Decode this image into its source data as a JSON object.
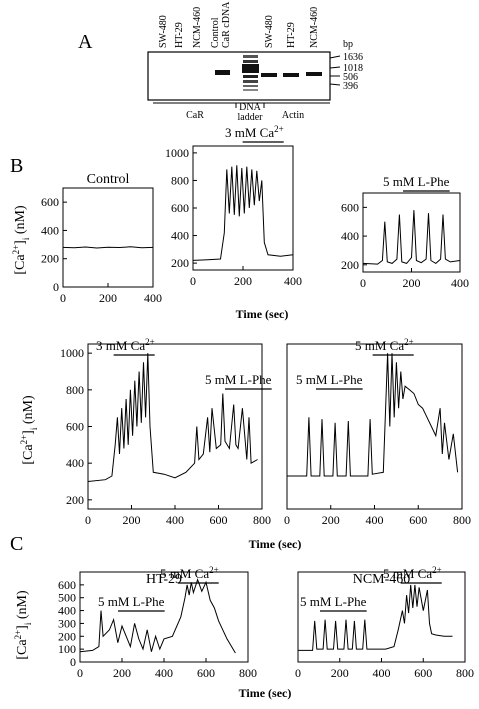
{
  "panel_a": {
    "label": "A",
    "lanes": [
      [
        "SW-480"
      ],
      [
        "HT-29"
      ],
      [
        "NCM-460"
      ],
      [
        "Control",
        "CaR cDNA"
      ],
      [
        "SW-480"
      ],
      [
        "HT-29"
      ],
      [
        "NCM-460"
      ]
    ],
    "bp": [
      "bp",
      "1636",
      "1018",
      "506",
      "396"
    ],
    "groups": [
      [
        "CaR"
      ],
      [
        "DNA",
        "ladder"
      ],
      [
        "Actin"
      ]
    ]
  },
  "panel_b": {
    "label": "B"
  },
  "panel_c": {
    "label": "C"
  },
  "chart_data": [
    {
      "type": "line",
      "title": "Control",
      "y_label": {
        "pre": "[Ca",
        "sup": "2+",
        "mid": "]",
        "sub": "i",
        "post": " (nM)"
      },
      "x": [
        0,
        50,
        100,
        150,
        200,
        250,
        300,
        350,
        400
      ],
      "series": [
        {
          "color": "#000000",
          "values": [
            280,
            278,
            283,
            276,
            281,
            279,
            284,
            277,
            280
          ]
        }
      ],
      "xlim": [
        0,
        400
      ],
      "xticks": [
        0,
        200,
        400
      ],
      "ylim": [
        0,
        700
      ],
      "yticks": [
        0,
        200,
        400,
        600
      ]
    },
    {
      "type": "line",
      "x_label": "Time (sec)",
      "annotations": [
        {
          "text": "3 mM Ca",
          "sup": "2+"
        }
      ],
      "x": [
        0,
        60,
        110,
        125,
        135,
        145,
        155,
        165,
        175,
        185,
        195,
        205,
        215,
        225,
        235,
        245,
        255,
        265,
        275,
        285,
        300,
        350,
        400
      ],
      "series": [
        {
          "color": "#000000",
          "values": [
            220,
            225,
            230,
            420,
            880,
            560,
            900,
            550,
            910,
            540,
            890,
            560,
            900,
            600,
            880,
            620,
            870,
            650,
            800,
            350,
            260,
            250,
            260
          ]
        }
      ],
      "xlim": [
        0,
        400
      ],
      "xticks": [
        0,
        200,
        400
      ],
      "ylim": [
        150,
        1050
      ],
      "yticks": [
        200,
        400,
        600,
        800,
        1000
      ]
    },
    {
      "type": "line",
      "annotations": [
        {
          "text": "5 mM L-Phe"
        }
      ],
      "x": [
        0,
        60,
        80,
        90,
        100,
        120,
        140,
        150,
        160,
        180,
        200,
        210,
        220,
        240,
        260,
        270,
        280,
        300,
        320,
        330,
        340,
        360,
        400
      ],
      "series": [
        {
          "color": "#000000",
          "values": [
            210,
            205,
            230,
            500,
            220,
            210,
            240,
            550,
            220,
            210,
            250,
            580,
            230,
            215,
            240,
            560,
            230,
            210,
            240,
            550,
            240,
            220,
            230
          ]
        }
      ],
      "xlim": [
        0,
        400
      ],
      "xticks": [
        0,
        200,
        400
      ],
      "ylim": [
        150,
        700
      ],
      "yticks": [
        200,
        400,
        600
      ]
    },
    {
      "type": "line",
      "x_label": "Time (sec)",
      "y_label": {
        "pre": "[Ca",
        "sup": "2+",
        "mid": "]",
        "sub": "i",
        "post": " (nM)"
      },
      "annotations": [
        {
          "text": "3 mM Ca",
          "sup": "2+"
        },
        {
          "text": "5 mM L-Phe"
        }
      ],
      "x": [
        0,
        80,
        110,
        125,
        135,
        145,
        155,
        165,
        175,
        185,
        195,
        205,
        215,
        225,
        235,
        245,
        255,
        265,
        275,
        285,
        300,
        350,
        400,
        450,
        490,
        500,
        510,
        530,
        550,
        560,
        570,
        590,
        610,
        620,
        630,
        650,
        670,
        680,
        690,
        710,
        730,
        740,
        750,
        780
      ],
      "series": [
        {
          "color": "#000000",
          "values": [
            300,
            310,
            330,
            500,
            650,
            450,
            700,
            480,
            750,
            500,
            800,
            550,
            850,
            600,
            900,
            620,
            950,
            650,
            1000,
            600,
            350,
            340,
            320,
            350,
            400,
            600,
            420,
            450,
            650,
            460,
            700,
            480,
            500,
            780,
            520,
            480,
            720,
            500,
            480,
            700,
            420,
            650,
            400,
            420
          ]
        }
      ],
      "xlim": [
        0,
        800
      ],
      "xticks": [
        0,
        200,
        400,
        600,
        800
      ],
      "ylim": [
        150,
        1050
      ],
      "yticks": [
        200,
        400,
        600,
        800,
        1000
      ]
    },
    {
      "type": "line",
      "annotations": [
        {
          "text": "5 mM Ca",
          "sup": "2+"
        },
        {
          "text": "5 mM L-Phe"
        }
      ],
      "x": [
        0,
        90,
        100,
        110,
        150,
        160,
        170,
        210,
        220,
        230,
        270,
        280,
        290,
        370,
        380,
        390,
        440,
        460,
        470,
        480,
        490,
        500,
        510,
        520,
        530,
        540,
        560,
        580,
        600,
        620,
        640,
        660,
        680,
        700,
        710,
        720,
        740,
        760,
        780
      ],
      "series": [
        {
          "color": "#000000",
          "values": [
            330,
            330,
            650,
            330,
            330,
            640,
            330,
            330,
            620,
            330,
            330,
            630,
            330,
            330,
            640,
            340,
            350,
            1000,
            600,
            1000,
            650,
            950,
            700,
            900,
            750,
            820,
            800,
            780,
            720,
            700,
            650,
            600,
            550,
            700,
            450,
            620,
            420,
            560,
            350
          ]
        }
      ],
      "xlim": [
        0,
        800
      ],
      "xticks": [
        0,
        200,
        400,
        600,
        800
      ],
      "ylim": [
        150,
        1050
      ]
    },
    {
      "type": "line",
      "title": "HT-29",
      "x_label": "Time (sec)",
      "y_label": {
        "pre": "[Ca",
        "sup": "2+",
        "mid": "]",
        "sub": "i",
        "post": " (nM)"
      },
      "annotations": [
        {
          "text": "5 mM L-Phe"
        },
        {
          "text": "5 mM Ca",
          "sup": "2+"
        }
      ],
      "x": [
        0,
        60,
        90,
        100,
        110,
        140,
        160,
        180,
        200,
        220,
        240,
        260,
        280,
        300,
        320,
        340,
        360,
        380,
        400,
        440,
        480,
        500,
        510,
        520,
        530,
        540,
        560,
        580,
        600,
        620,
        640,
        660,
        680,
        700,
        740
      ],
      "series": [
        {
          "color": "#000000",
          "values": [
            80,
            90,
            120,
            400,
            200,
            250,
            330,
            150,
            280,
            200,
            120,
            300,
            180,
            100,
            250,
            80,
            200,
            100,
            180,
            200,
            350,
            500,
            600,
            520,
            620,
            540,
            640,
            550,
            620,
            480,
            420,
            320,
            250,
            180,
            70
          ]
        }
      ],
      "xlim": [
        0,
        800
      ],
      "xticks": [
        0,
        200,
        400,
        600,
        800
      ],
      "ylim": [
        0,
        700
      ],
      "yticks": [
        0,
        100,
        200,
        300,
        400,
        500,
        600
      ]
    },
    {
      "type": "line",
      "title": "NCM-460",
      "annotations": [
        {
          "text": "5 mM L-Phe"
        },
        {
          "text": "5 mM Ca",
          "sup": "2+"
        }
      ],
      "x": [
        0,
        70,
        80,
        90,
        120,
        130,
        140,
        170,
        180,
        190,
        220,
        230,
        240,
        260,
        270,
        280,
        310,
        320,
        330,
        360,
        420,
        460,
        480,
        500,
        510,
        520,
        530,
        540,
        550,
        560,
        570,
        580,
        600,
        620,
        630,
        640,
        660,
        700,
        740
      ],
      "series": [
        {
          "color": "#000000",
          "values": [
            90,
            90,
            320,
            100,
            100,
            330,
            100,
            100,
            320,
            100,
            100,
            330,
            100,
            100,
            320,
            100,
            100,
            330,
            100,
            100,
            100,
            120,
            250,
            400,
            300,
            520,
            380,
            600,
            420,
            600,
            430,
            580,
            400,
            560,
            300,
            220,
            210,
            200,
            200
          ]
        }
      ],
      "xlim": [
        0,
        800
      ],
      "xticks": [
        0,
        200,
        400,
        600,
        800
      ],
      "ylim": [
        0,
        700
      ]
    }
  ]
}
